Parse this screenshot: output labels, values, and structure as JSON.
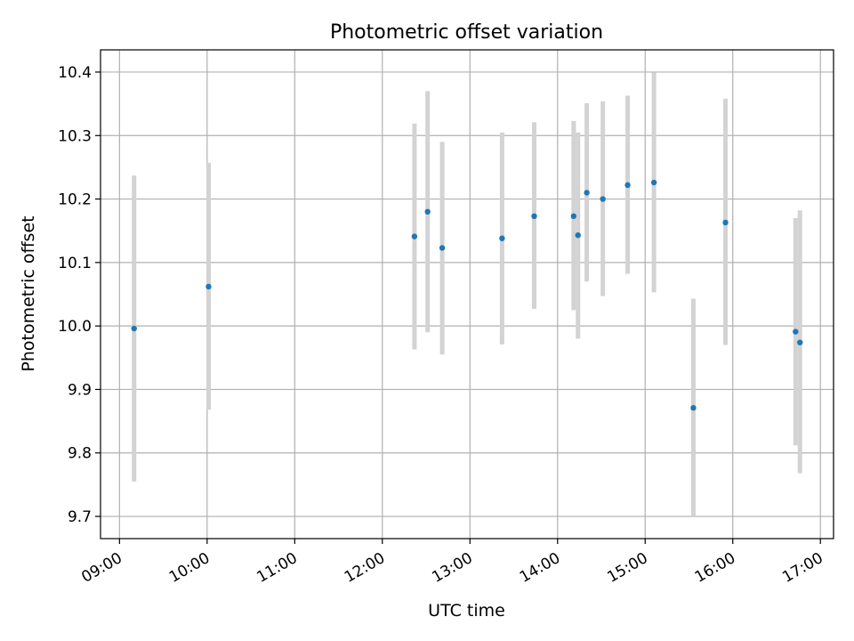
{
  "chart_data": {
    "type": "scatter",
    "title": "Photometric offset variation",
    "xlabel": "UTC time",
    "ylabel": "Photometric offset",
    "x_ticks": [
      "09:00",
      "10:00",
      "11:00",
      "12:00",
      "13:00",
      "14:00",
      "15:00",
      "16:00",
      "17:00"
    ],
    "y_ticks": [
      "9.7",
      "9.8",
      "9.9",
      "10.0",
      "10.1",
      "10.2",
      "10.3",
      "10.4"
    ],
    "xlim": [
      "08:47",
      "17:09"
    ],
    "ylim": [
      9.665,
      10.435
    ],
    "grid": true,
    "point_color": "#1f77b4",
    "errorbar_color": "#d3d3d3",
    "points": [
      {
        "x": "09:10",
        "y": 9.996,
        "err_low": 9.755,
        "err_high": 10.237
      },
      {
        "x": "10:01",
        "y": 10.062,
        "err_low": 9.868,
        "err_high": 10.257
      },
      {
        "x": "12:22",
        "y": 10.141,
        "err_low": 9.963,
        "err_high": 10.319
      },
      {
        "x": "12:31",
        "y": 10.18,
        "err_low": 9.99,
        "err_high": 10.37
      },
      {
        "x": "12:41",
        "y": 10.123,
        "err_low": 9.955,
        "err_high": 10.29
      },
      {
        "x": "13:22",
        "y": 10.138,
        "err_low": 9.971,
        "err_high": 10.305
      },
      {
        "x": "13:44",
        "y": 10.173,
        "err_low": 10.027,
        "err_high": 10.321
      },
      {
        "x": "14:11",
        "y": 10.173,
        "err_low": 10.025,
        "err_high": 10.323
      },
      {
        "x": "14:14",
        "y": 10.143,
        "err_low": 9.98,
        "err_high": 10.305
      },
      {
        "x": "14:20",
        "y": 10.21,
        "err_low": 10.07,
        "err_high": 10.351
      },
      {
        "x": "14:31",
        "y": 10.2,
        "err_low": 10.047,
        "err_high": 10.354
      },
      {
        "x": "14:48",
        "y": 10.222,
        "err_low": 10.082,
        "err_high": 10.363
      },
      {
        "x": "15:06",
        "y": 10.226,
        "err_low": 10.053,
        "err_high": 10.399
      },
      {
        "x": "15:33",
        "y": 9.871,
        "err_low": 9.7,
        "err_high": 10.043
      },
      {
        "x": "15:55",
        "y": 10.163,
        "err_low": 9.97,
        "err_high": 10.358
      },
      {
        "x": "16:43",
        "y": 9.991,
        "err_low": 9.812,
        "err_high": 10.17
      },
      {
        "x": "16:46",
        "y": 9.974,
        "err_low": 9.768,
        "err_high": 10.182
      }
    ]
  }
}
